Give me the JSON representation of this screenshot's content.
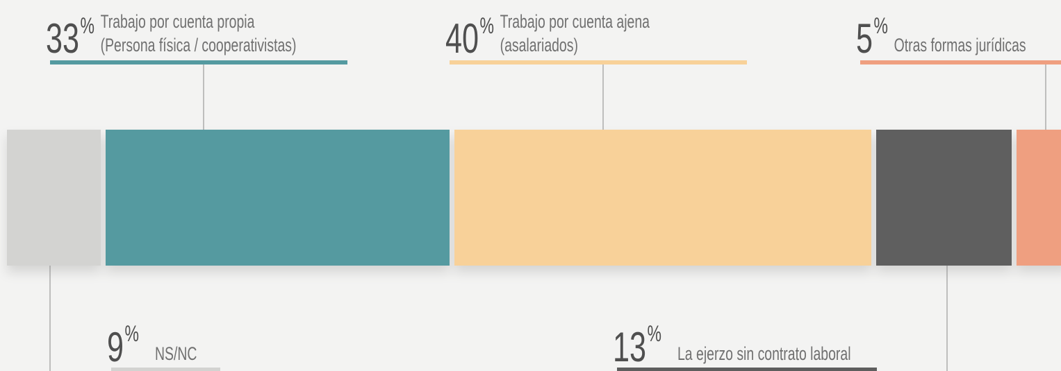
{
  "chart_data": {
    "type": "stacked-bar",
    "unit": "%",
    "segments": [
      {
        "value": 9,
        "label": [
          "NS/NC"
        ],
        "color": "#d3d3d1"
      },
      {
        "value": 33,
        "label": [
          "Trabajo por cuenta propia",
          "(Persona física / cooperativistas)"
        ],
        "color": "#549aa0"
      },
      {
        "value": 40,
        "label": [
          "Trabajo por cuenta ajena",
          "(asalariados)"
        ],
        "color": "#f8d199"
      },
      {
        "value": 13,
        "label": [
          "La ejerzo sin contrato laboral"
        ],
        "color": "#5e5e5e"
      },
      {
        "value": 5,
        "label": [
          "Otras formas jurídicas"
        ],
        "color": "#ef9f80"
      }
    ]
  }
}
